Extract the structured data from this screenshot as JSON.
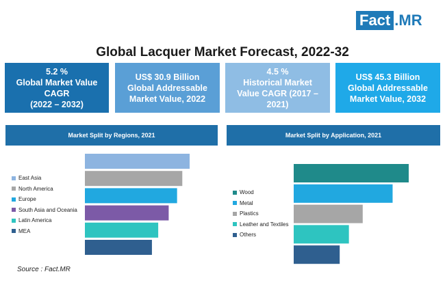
{
  "brand": {
    "fact": "Fact",
    "dot": ".",
    "mr": "MR"
  },
  "title": "Global Lacquer Market Forecast, 2022-32",
  "kpis": [
    {
      "text": "5.2 %\nGlobal Market Value\nCAGR\n(2022 – 2032)",
      "color": "#1a70ae"
    },
    {
      "text": "US$ 30.9 Billion\nGlobal Addressable\nMarket Value, 2022",
      "color": "#5a9fd6"
    },
    {
      "text": "4.5 %\nHistorical Market\nValue CAGR (2017 –\n2021)",
      "color": "#8fbde4"
    },
    {
      "text": "US$ 45.3 Billion\nGlobal Addressable\nMarket Value, 2032",
      "color": "#1fa9e8"
    }
  ],
  "source": "Source : Fact.MR",
  "chart_data": [
    {
      "type": "bar",
      "title": "Market Split by Regions, 2021",
      "categories": [
        "East Asia",
        "North America",
        "Europe",
        "South Asia and Oceania",
        "Latin America",
        "MEA"
      ],
      "values": [
        100,
        93,
        88,
        80,
        70,
        64
      ],
      "colors": [
        "#8db4e0",
        "#a6a6a6",
        "#21a8e0",
        "#7c5aa7",
        "#2ec4c0",
        "#2f5f8f"
      ]
    },
    {
      "type": "bar",
      "title": "Market Split by Application, 2021",
      "categories": [
        "Wood",
        "Metal",
        "Plastics",
        "Leather and Textiles",
        "Others"
      ],
      "values": [
        100,
        86,
        60,
        48,
        40
      ],
      "colors": [
        "#1f8a8a",
        "#21a8e0",
        "#a6a6a6",
        "#2ec4c0",
        "#2f5f8f"
      ]
    }
  ]
}
